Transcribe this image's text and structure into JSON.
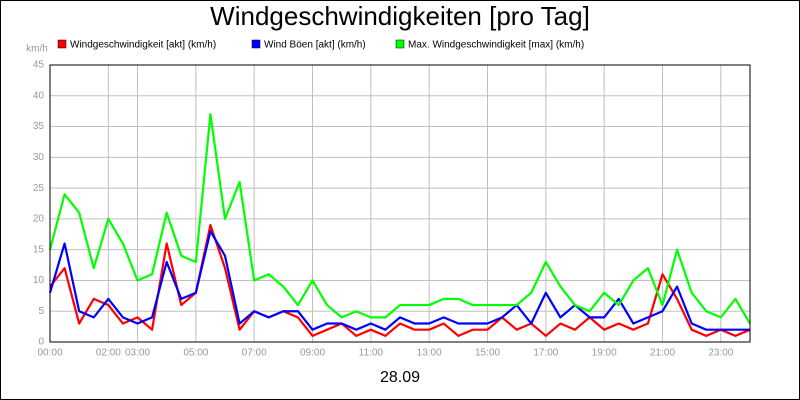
{
  "chart_data": {
    "type": "line",
    "title": "Windgeschwindigkeiten [pro Tag]",
    "y_label": "km/h",
    "x_label": "28.09",
    "x": [
      0,
      0.5,
      1,
      1.5,
      2,
      2.5,
      3,
      3.5,
      4,
      4.5,
      5,
      5.5,
      6,
      6.5,
      7,
      7.5,
      8,
      8.5,
      9,
      9.5,
      10,
      10.5,
      11,
      11.5,
      12,
      12.5,
      13,
      13.5,
      14,
      14.5,
      15,
      15.5,
      16,
      16.5,
      17,
      17.5,
      18,
      18.5,
      19,
      19.5,
      20,
      20.5,
      21,
      21.5,
      22,
      22.5,
      23,
      23.5,
      24
    ],
    "series": [
      {
        "name": "Windgeschwindigkeit [akt] (km/h)",
        "color": "#ff0000",
        "values": [
          9,
          12,
          3,
          7,
          6,
          3,
          4,
          2,
          16,
          6,
          8,
          19,
          12,
          2,
          5,
          4,
          5,
          4,
          1,
          2,
          3,
          1,
          2,
          1,
          3,
          2,
          2,
          3,
          1,
          2,
          2,
          4,
          2,
          3,
          1,
          3,
          2,
          4,
          2,
          3,
          2,
          3,
          11,
          7,
          2,
          1,
          2,
          1,
          2
        ]
      },
      {
        "name": "Wind Böen [akt] (km/h)",
        "color": "#0000ff",
        "values": [
          8,
          16,
          5,
          4,
          7,
          4,
          3,
          4,
          13,
          7,
          8,
          18,
          14,
          3,
          5,
          4,
          5,
          5,
          2,
          3,
          3,
          2,
          3,
          2,
          4,
          3,
          3,
          4,
          3,
          3,
          3,
          4,
          6,
          3,
          8,
          4,
          6,
          4,
          4,
          7,
          3,
          4,
          5,
          9,
          3,
          2,
          2,
          2,
          2
        ]
      },
      {
        "name": "Max. Windgeschwindigkeit [max] (km/h)",
        "color": "#00ff00",
        "values": [
          15,
          24,
          21,
          12,
          20,
          16,
          10,
          11,
          21,
          14,
          13,
          37,
          20,
          26,
          10,
          11,
          9,
          6,
          10,
          6,
          4,
          5,
          4,
          4,
          6,
          6,
          6,
          7,
          7,
          6,
          6,
          6,
          6,
          8,
          13,
          9,
          6,
          5,
          8,
          6,
          10,
          12,
          6,
          15,
          8,
          5,
          4,
          7,
          3
        ]
      }
    ],
    "xlim": [
      0,
      24
    ],
    "xticks": [
      {
        "value": 0,
        "label": "00:00"
      },
      {
        "value": 2,
        "label": "02:00"
      },
      {
        "value": 3,
        "label": "03:00"
      },
      {
        "value": 5,
        "label": "05:00"
      },
      {
        "value": 7,
        "label": "07:00"
      },
      {
        "value": 9,
        "label": "09:00"
      },
      {
        "value": 11,
        "label": "11:00"
      },
      {
        "value": 13,
        "label": "13:00"
      },
      {
        "value": 15,
        "label": "15:00"
      },
      {
        "value": 17,
        "label": "17:00"
      },
      {
        "value": 19,
        "label": "19:00"
      },
      {
        "value": 21,
        "label": "21:00"
      },
      {
        "value": 23,
        "label": "23:00"
      }
    ],
    "ylim": [
      0,
      45
    ],
    "yticks": [
      0,
      5,
      10,
      15,
      20,
      25,
      30,
      35,
      40,
      45
    ],
    "grid": true
  }
}
